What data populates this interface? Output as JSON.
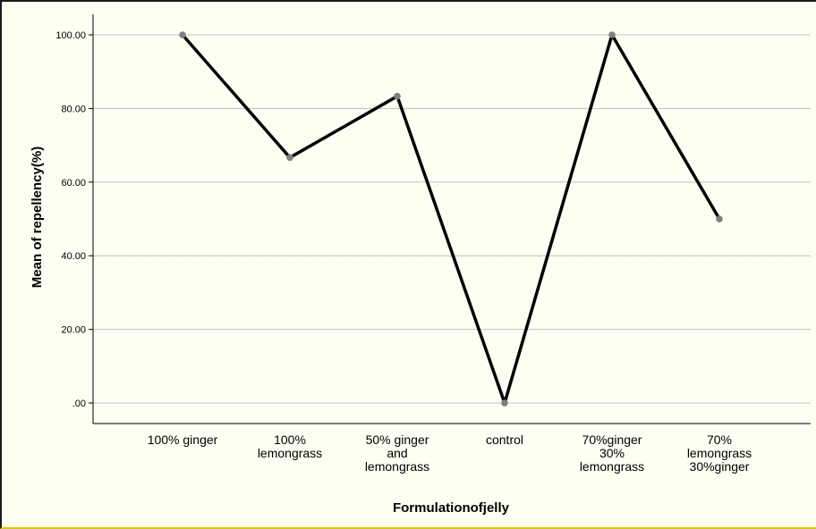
{
  "chart_data": {
    "type": "line",
    "title": "",
    "xlabel": "Formulationofjelly",
    "ylabel": "Mean of repellency(%)",
    "ylim": [
      0,
      100
    ],
    "yticks": [
      ".00",
      "20.00",
      "40.00",
      "60.00",
      "80.00",
      "100.00"
    ],
    "grid": true,
    "categories": [
      "100% ginger",
      "100% lemongrass",
      "50% ginger and lemongrass",
      "control",
      "70%ginger 30% lemongrass",
      "70% lemongrass 30%ginger"
    ],
    "category_lines": [
      [
        "100% ginger"
      ],
      [
        "100%",
        "lemongrass"
      ],
      [
        "50% ginger",
        "and",
        "lemongrass"
      ],
      [
        "control"
      ],
      [
        "70%ginger",
        "30%",
        "lemongrass"
      ],
      [
        "70%",
        "lemongrass",
        "30%ginger"
      ]
    ],
    "values": [
      100,
      66.67,
      83.33,
      0,
      100,
      50
    ],
    "colors": {
      "line": "#000000",
      "marker": "#7f7f7f",
      "grid": "#c0c0c0"
    }
  }
}
